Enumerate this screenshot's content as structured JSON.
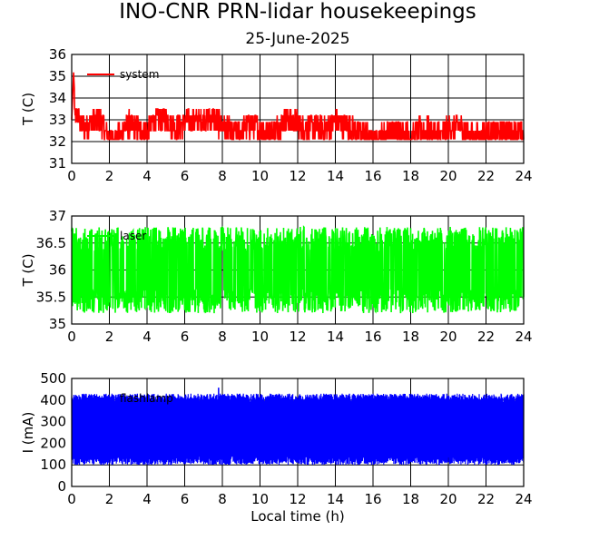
{
  "title": "INO-CNR PRN-lidar housekeepings",
  "subtitle": "25-June-2025",
  "xlabel": "Local time (h)",
  "chart_data": [
    {
      "type": "line",
      "ylabel": "T (C)",
      "xlim": [
        0,
        24
      ],
      "ylim": [
        31,
        36
      ],
      "x_ticks": [
        "0",
        "2",
        "4",
        "6",
        "8",
        "10",
        "12",
        "14",
        "16",
        "18",
        "20",
        "22",
        "24"
      ],
      "y_ticks": [
        "31",
        "32",
        "33",
        "34",
        "35",
        "36"
      ],
      "grid": true,
      "legend": "top-left",
      "series": [
        {
          "name": "system",
          "color": "#ff0000",
          "profile": [
            [
              0.0,
              33.0
            ],
            [
              0.1,
              35.2
            ],
            [
              0.2,
              33.4
            ],
            [
              0.5,
              32.6
            ],
            [
              1.0,
              32.9
            ],
            [
              1.5,
              33.0
            ],
            [
              2.0,
              32.1
            ],
            [
              2.5,
              32.2
            ],
            [
              3.0,
              32.8
            ],
            [
              3.5,
              32.6
            ],
            [
              4.0,
              32.5
            ],
            [
              4.5,
              33.0
            ],
            [
              5.0,
              33.1
            ],
            [
              5.5,
              32.6
            ],
            [
              6.0,
              32.9
            ],
            [
              6.5,
              32.9
            ],
            [
              7.0,
              33.0
            ],
            [
              7.5,
              33.1
            ],
            [
              8.0,
              32.7
            ],
            [
              8.5,
              32.4
            ],
            [
              9.0,
              32.5
            ],
            [
              9.5,
              32.8
            ],
            [
              10.0,
              32.6
            ],
            [
              10.5,
              32.4
            ],
            [
              11.0,
              32.7
            ],
            [
              11.5,
              33.0
            ],
            [
              12.0,
              32.8
            ],
            [
              12.5,
              32.6
            ],
            [
              13.0,
              32.6
            ],
            [
              13.5,
              32.5
            ],
            [
              14.0,
              32.9
            ],
            [
              14.5,
              32.8
            ],
            [
              15.0,
              32.6
            ],
            [
              15.5,
              32.3
            ],
            [
              16.0,
              32.1
            ],
            [
              16.5,
              32.2
            ],
            [
              17.0,
              32.5
            ],
            [
              17.5,
              32.4
            ],
            [
              18.0,
              32.2
            ],
            [
              18.5,
              32.5
            ],
            [
              19.0,
              32.5
            ],
            [
              19.5,
              32.3
            ],
            [
              20.0,
              32.6
            ],
            [
              20.5,
              32.7
            ],
            [
              21.0,
              32.4
            ],
            [
              21.5,
              32.2
            ],
            [
              22.0,
              32.3
            ],
            [
              22.5,
              32.4
            ],
            [
              23.0,
              32.5
            ],
            [
              23.5,
              32.4
            ],
            [
              24.0,
              32.3
            ]
          ],
          "min": 31.9,
          "max": 33.5
        }
      ]
    },
    {
      "type": "line",
      "ylabel": "T (C)",
      "xlim": [
        0,
        24
      ],
      "ylim": [
        35,
        37
      ],
      "x_ticks": [
        "0",
        "2",
        "4",
        "6",
        "8",
        "10",
        "12",
        "14",
        "16",
        "18",
        "20",
        "22",
        "24"
      ],
      "y_ticks": [
        "35",
        "35.5",
        "36",
        "36.5",
        "37"
      ],
      "grid": true,
      "legend": "top-left",
      "series": [
        {
          "name": "laser",
          "color": "#00ff00",
          "mean": 36.0,
          "min": 35.2,
          "max": 36.8
        }
      ]
    },
    {
      "type": "line",
      "ylabel": "I (mA)",
      "xlim": [
        0,
        24
      ],
      "ylim": [
        0,
        500
      ],
      "x_ticks": [
        "0",
        "2",
        "4",
        "6",
        "8",
        "10",
        "12",
        "14",
        "16",
        "18",
        "20",
        "22",
        "24"
      ],
      "y_ticks": [
        "0",
        "100",
        "200",
        "300",
        "400",
        "500"
      ],
      "grid": true,
      "legend": "top-left",
      "series": [
        {
          "name": "flashlamp",
          "color": "#0000ff",
          "mean": 270,
          "min": 100,
          "max": 430,
          "spike": [
            7.8,
            455
          ]
        }
      ]
    }
  ]
}
